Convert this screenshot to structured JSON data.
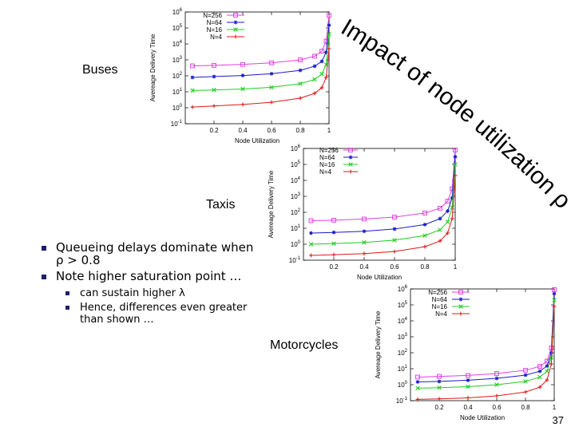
{
  "slide": {
    "title": "Impact of node utilization ρ",
    "page_number": "37",
    "labels": {
      "buses": "Buses",
      "taxis": "Taxis",
      "motorcycles": "Motorcycles"
    },
    "bullets": [
      {
        "text": "Queueing delays dominate when ρ > 0.8"
      },
      {
        "text": "Note higher saturation point …"
      }
    ],
    "subbullets": [
      {
        "text": "can sustain higher λ"
      },
      {
        "text": "Hence, differences even greater than shown …"
      }
    ]
  },
  "chart_data": [
    {
      "type": "line",
      "panel": "buses",
      "xlabel": "Node Utilization",
      "ylabel": "Avereage Delivery Time",
      "yscale": "log",
      "xticks": [
        "0.2",
        "0.4",
        "0.6",
        "0.8",
        "1"
      ],
      "yticks": [
        "10^-1",
        "10^0",
        "10^1",
        "10^2",
        "10^3",
        "10^4",
        "10^5",
        "10^6"
      ],
      "xlim": [
        0,
        1
      ],
      "ylim": [
        0.1,
        1000000
      ],
      "legend": "top-left",
      "series": [
        {
          "name": "N=256",
          "color": "#e040e0",
          "marker": "square",
          "points": [
            [
              0.05,
              420
            ],
            [
              0.2,
              450
            ],
            [
              0.4,
              520
            ],
            [
              0.6,
              650
            ],
            [
              0.8,
              1000
            ],
            [
              0.9,
              1700
            ],
            [
              0.95,
              3500
            ],
            [
              0.98,
              15000
            ],
            [
              1,
              600000
            ]
          ]
        },
        {
          "name": "N=64",
          "color": "#1a1acc",
          "marker": "star",
          "points": [
            [
              0.05,
              80
            ],
            [
              0.2,
              90
            ],
            [
              0.4,
              105
            ],
            [
              0.6,
              135
            ],
            [
              0.8,
              220
            ],
            [
              0.9,
              400
            ],
            [
              0.95,
              800
            ],
            [
              0.98,
              3000
            ],
            [
              1,
              150000
            ]
          ]
        },
        {
          "name": "N=16",
          "color": "#20cc20",
          "marker": "x",
          "points": [
            [
              0.05,
              12
            ],
            [
              0.2,
              13
            ],
            [
              0.4,
              15
            ],
            [
              0.6,
              19
            ],
            [
              0.8,
              32
            ],
            [
              0.9,
              60
            ],
            [
              0.95,
              130
            ],
            [
              0.98,
              500
            ],
            [
              1,
              40000
            ]
          ]
        },
        {
          "name": "N=4",
          "color": "#dd1a1a",
          "marker": "plus",
          "points": [
            [
              0.05,
              1.1
            ],
            [
              0.2,
              1.3
            ],
            [
              0.4,
              1.6
            ],
            [
              0.6,
              2.2
            ],
            [
              0.8,
              4
            ],
            [
              0.9,
              8
            ],
            [
              0.95,
              18
            ],
            [
              0.98,
              80
            ],
            [
              1,
              5000
            ]
          ]
        }
      ]
    },
    {
      "type": "line",
      "panel": "taxis",
      "xlabel": "Node Utilization",
      "ylabel": "Avereage Delivery Time",
      "yscale": "log",
      "xticks": [
        "0.2",
        "0.4",
        "0.6",
        "0.8",
        "1"
      ],
      "yticks": [
        "10^-1",
        "10^0",
        "10^1",
        "10^2",
        "10^3",
        "10^4",
        "10^5",
        "10^6"
      ],
      "xlim": [
        0,
        1
      ],
      "ylim": [
        0.1,
        1000000
      ],
      "legend": "top-right",
      "series": [
        {
          "name": "N=256",
          "color": "#e040e0",
          "marker": "square",
          "points": [
            [
              0.05,
              30
            ],
            [
              0.2,
              32
            ],
            [
              0.4,
              38
            ],
            [
              0.6,
              50
            ],
            [
              0.8,
              90
            ],
            [
              0.9,
              180
            ],
            [
              0.95,
              500
            ],
            [
              0.98,
              3000
            ],
            [
              1,
              800000
            ]
          ]
        },
        {
          "name": "N=64",
          "color": "#1a1acc",
          "marker": "star",
          "points": [
            [
              0.05,
              5
            ],
            [
              0.2,
              5.5
            ],
            [
              0.4,
              6.5
            ],
            [
              0.6,
              9
            ],
            [
              0.8,
              17
            ],
            [
              0.9,
              40
            ],
            [
              0.95,
              120
            ],
            [
              0.98,
              800
            ],
            [
              1,
              300000
            ]
          ]
        },
        {
          "name": "N=16",
          "color": "#20cc20",
          "marker": "x",
          "points": [
            [
              0.05,
              1
            ],
            [
              0.2,
              1.1
            ],
            [
              0.4,
              1.3
            ],
            [
              0.6,
              1.8
            ],
            [
              0.8,
              3.5
            ],
            [
              0.9,
              8
            ],
            [
              0.95,
              25
            ],
            [
              0.98,
              200
            ],
            [
              1,
              100000
            ]
          ]
        },
        {
          "name": "N=4",
          "color": "#dd1a1a",
          "marker": "plus",
          "points": [
            [
              0.05,
              0.2
            ],
            [
              0.2,
              0.22
            ],
            [
              0.4,
              0.26
            ],
            [
              0.6,
              0.35
            ],
            [
              0.8,
              0.7
            ],
            [
              0.9,
              1.6
            ],
            [
              0.95,
              5
            ],
            [
              0.98,
              40
            ],
            [
              1,
              20000
            ]
          ]
        }
      ]
    },
    {
      "type": "line",
      "panel": "motorcycles",
      "xlabel": "Node Utilization",
      "ylabel": "Avereage Delivery Time",
      "yscale": "log",
      "xticks": [
        "0.2",
        "0.4",
        "0.6",
        "0.8",
        "1"
      ],
      "yticks": [
        "10^-1",
        "10^0",
        "10^1",
        "10^2",
        "10^3",
        "10^4",
        "10^5",
        "10^6"
      ],
      "xlim": [
        0,
        1
      ],
      "ylim": [
        0.1,
        1000000
      ],
      "legend": "top-left",
      "series": [
        {
          "name": "N=256",
          "color": "#e040e0",
          "marker": "square",
          "points": [
            [
              0.05,
              3
            ],
            [
              0.2,
              3.3
            ],
            [
              0.4,
              3.8
            ],
            [
              0.6,
              5
            ],
            [
              0.8,
              8
            ],
            [
              0.9,
              14
            ],
            [
              0.95,
              30
            ],
            [
              0.98,
              200
            ],
            [
              1,
              900000
            ]
          ]
        },
        {
          "name": "N=64",
          "color": "#1a1acc",
          "marker": "star",
          "points": [
            [
              0.05,
              1.5
            ],
            [
              0.2,
              1.6
            ],
            [
              0.4,
              1.9
            ],
            [
              0.6,
              2.5
            ],
            [
              0.8,
              4
            ],
            [
              0.9,
              7
            ],
            [
              0.95,
              15
            ],
            [
              0.98,
              100
            ],
            [
              1,
              500000
            ]
          ]
        },
        {
          "name": "N=16",
          "color": "#20cc20",
          "marker": "x",
          "points": [
            [
              0.05,
              0.6
            ],
            [
              0.2,
              0.65
            ],
            [
              0.4,
              0.75
            ],
            [
              0.6,
              1
            ],
            [
              0.8,
              1.6
            ],
            [
              0.9,
              3
            ],
            [
              0.95,
              7
            ],
            [
              0.98,
              50
            ],
            [
              1,
              200000
            ]
          ]
        },
        {
          "name": "N=4",
          "color": "#dd1a1a",
          "marker": "plus",
          "points": [
            [
              0.05,
              0.12
            ],
            [
              0.2,
              0.13
            ],
            [
              0.4,
              0.15
            ],
            [
              0.6,
              0.2
            ],
            [
              0.8,
              0.35
            ],
            [
              0.9,
              0.7
            ],
            [
              0.95,
              2
            ],
            [
              0.98,
              20
            ],
            [
              1,
              80000
            ]
          ]
        }
      ]
    }
  ]
}
